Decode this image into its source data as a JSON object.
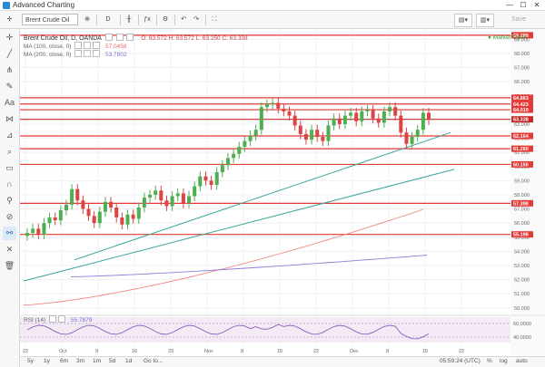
{
  "window": {
    "title": "Advanced Charting",
    "controls": [
      "—",
      "☐",
      "✕"
    ]
  },
  "toolbar": {
    "symbol": "Brent Crude Oil",
    "interval": "D",
    "settings_icon": "gear-icon",
    "right_label": "Save"
  },
  "chart": {
    "header": "Brent Crude Oil, D, OANDA",
    "ohlc": "O: 63.572  H: 63.572  L: 63.250  C: 63.338",
    "market_status": "Market Open",
    "ma1_label": "MA (100, close, 0)",
    "ma1_value": "57.0458",
    "ma2_label": "MA (200, close, 0)",
    "ma2_value": "53.7802",
    "rsi_label": "RSI (14)",
    "rsi_value": "55.7879",
    "y_ticks": [
      "69.000",
      "68.000",
      "67.000",
      "66.000",
      "65.000",
      "64.000",
      "63.000",
      "62.000",
      "61.000",
      "60.000",
      "59.000",
      "58.000",
      "57.000",
      "56.000",
      "55.000",
      "54.000",
      "53.000",
      "52.000",
      "51.000",
      "50.000"
    ],
    "price_tags": [
      {
        "label": "69.288",
        "value": 69.288
      },
      {
        "label": "64.863",
        "value": 64.863
      },
      {
        "label": "64.423",
        "value": 64.423
      },
      {
        "label": "64.019",
        "value": 64.019
      },
      {
        "label": "63.338",
        "value": 63.338
      },
      {
        "label": "62.164",
        "value": 62.164
      },
      {
        "label": "61.260",
        "value": 61.26
      },
      {
        "label": "60.150",
        "value": 60.15
      },
      {
        "label": "57.398",
        "value": 57.398
      },
      {
        "label": "55.198",
        "value": 55.198
      }
    ],
    "rsi_ticks": [
      "60.0000",
      "40.0000"
    ],
    "x_ticks": [
      "22",
      "Oct",
      "9",
      "16",
      "23",
      "Nov",
      "8",
      "15",
      "22",
      "Dec",
      "8",
      "15",
      "22"
    ],
    "timestamp": "05:59:24 (UTC)"
  },
  "periods": [
    "5y",
    "1y",
    "6m",
    "3m",
    "1m",
    "5d",
    "1d",
    "Go to..."
  ],
  "bottom_right": [
    "%",
    "log",
    "auto"
  ]
}
